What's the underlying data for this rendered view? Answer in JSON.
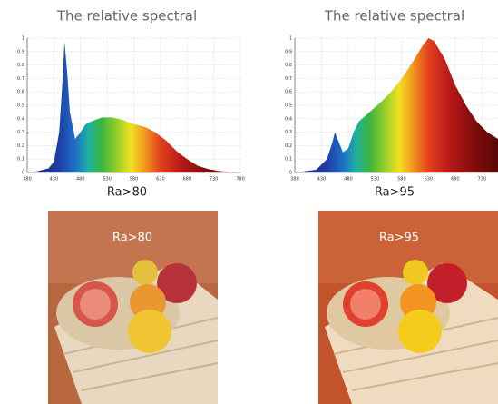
{
  "chart_data": [
    {
      "type": "area",
      "title": "The relative spectral",
      "caption": "Ra>80",
      "x": [
        380,
        400,
        420,
        430,
        440,
        445,
        450,
        455,
        460,
        470,
        480,
        490,
        500,
        520,
        540,
        560,
        580,
        600,
        620,
        640,
        660,
        680,
        700,
        720,
        740,
        780
      ],
      "values": [
        0,
        0.01,
        0.03,
        0.08,
        0.3,
        0.6,
        0.97,
        0.75,
        0.45,
        0.25,
        0.3,
        0.36,
        0.38,
        0.41,
        0.41,
        0.39,
        0.36,
        0.34,
        0.3,
        0.24,
        0.16,
        0.1,
        0.05,
        0.025,
        0.01,
        0
      ],
      "xlim": [
        380,
        780
      ],
      "ylim": [
        0,
        1
      ],
      "xticks": [
        380,
        430,
        480,
        530,
        580,
        630,
        680,
        730,
        780
      ],
      "yticks": [
        0,
        0.1,
        0.2,
        0.3,
        0.4,
        0.5,
        0.6,
        0.7,
        0.8,
        0.9,
        1
      ],
      "grid": true
    },
    {
      "type": "area",
      "title": "The relative spectral",
      "caption": "Ra>95",
      "x": [
        380,
        420,
        440,
        450,
        455,
        460,
        470,
        480,
        490,
        500,
        520,
        540,
        560,
        580,
        600,
        620,
        630,
        640,
        660,
        680,
        700,
        720,
        740,
        760
      ],
      "values": [
        0,
        0.02,
        0.1,
        0.22,
        0.3,
        0.25,
        0.15,
        0.18,
        0.3,
        0.38,
        0.45,
        0.52,
        0.6,
        0.7,
        0.82,
        0.95,
        1,
        0.98,
        0.85,
        0.65,
        0.5,
        0.38,
        0.3,
        0.25
      ],
      "xlim": [
        380,
        760
      ],
      "ylim": [
        0,
        1
      ],
      "xticks": [
        380,
        430,
        480,
        530,
        580,
        630,
        680,
        730
      ],
      "yticks": [
        0,
        0.1,
        0.2,
        0.3,
        0.4,
        0.5,
        0.6,
        0.7,
        0.8,
        0.9,
        1
      ],
      "grid": true
    }
  ],
  "photos": [
    {
      "label": "Ra>80"
    },
    {
      "label": "Ra>95"
    }
  ]
}
